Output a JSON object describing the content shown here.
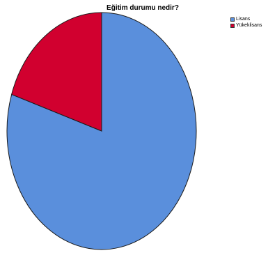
{
  "chart_data": {
    "type": "pie",
    "title": "Eğitim durumu nedir?",
    "categories": [
      "Lisans",
      "Yükeklisans"
    ],
    "values": [
      80,
      20
    ],
    "colors": [
      "#5a8fdc",
      "#d1002f"
    ],
    "legend_position": "top-right",
    "start_angle": "12 o'clock"
  }
}
